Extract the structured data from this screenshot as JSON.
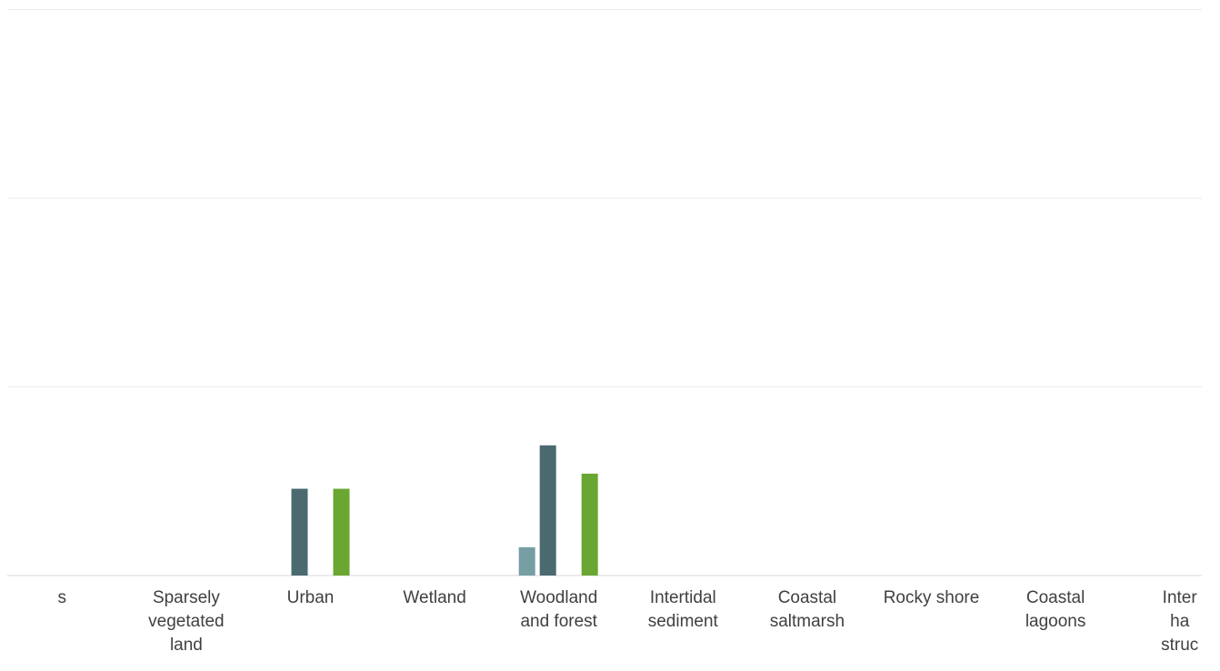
{
  "chart_data": {
    "type": "bar",
    "categories": [
      "s",
      "Sparsely vegetated land",
      "Urban",
      "Wetland",
      "Woodland and forest",
      "Intertidal sediment",
      "Coastal saltmarsh",
      "Rocky shore",
      "Coastal lagoons",
      "Inter ha struc"
    ],
    "category_lines": [
      [
        "s"
      ],
      [
        "Sparsely",
        "vegetated",
        "land"
      ],
      [
        "Urban"
      ],
      [
        "Wetland"
      ],
      [
        "Woodland",
        "and forest"
      ],
      [
        "Intertidal",
        "sediment"
      ],
      [
        "Coastal",
        "saltmarsh"
      ],
      [
        "Rocky shore"
      ],
      [
        "Coastal",
        "lagoons"
      ],
      [
        "Inter",
        "ha",
        "struc"
      ]
    ],
    "series": [
      {
        "values": [
          0,
          0,
          0,
          0,
          0.15,
          0,
          0,
          0,
          0,
          0
        ],
        "color": "#779ea4"
      },
      {
        "values": [
          0,
          0,
          0.46,
          0,
          0.69,
          0,
          0,
          0,
          0,
          0
        ],
        "color": "#4a6a70"
      },
      {
        "values": [
          0,
          0,
          0,
          0,
          0,
          0,
          0,
          0,
          0,
          0
        ],
        "color": "#8fb5b0"
      },
      {
        "values": [
          0,
          0,
          0.46,
          0,
          0.54,
          0,
          0,
          0,
          0,
          0
        ],
        "color": "#6aa632"
      }
    ],
    "ylim": [
      0,
      3
    ],
    "gridlines": [
      1,
      2,
      3
    ],
    "grid": true,
    "title": "",
    "xlabel": "",
    "ylabel": ""
  }
}
